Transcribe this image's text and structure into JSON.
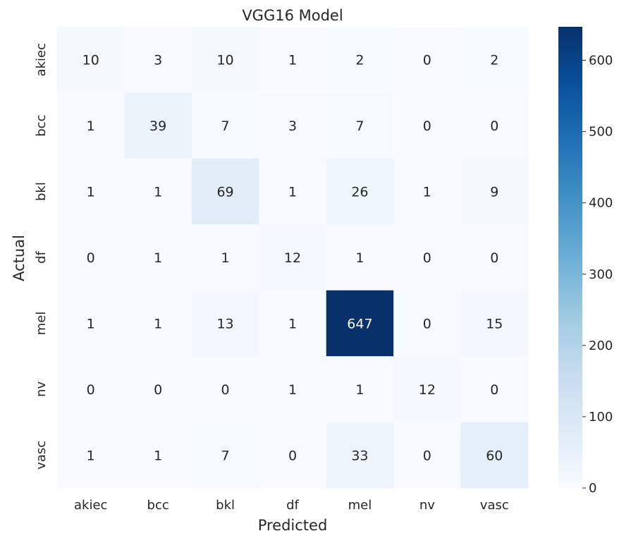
{
  "chart_data": {
    "type": "heatmap",
    "title": "VGG16 Model",
    "xlabel": "Predicted",
    "ylabel": "Actual",
    "x_categories": [
      "akiec",
      "bcc",
      "bkl",
      "df",
      "mel",
      "nv",
      "vasc"
    ],
    "y_categories": [
      "akiec",
      "bcc",
      "bkl",
      "df",
      "mel",
      "nv",
      "vasc"
    ],
    "values": [
      [
        10,
        3,
        10,
        1,
        2,
        0,
        2
      ],
      [
        1,
        39,
        7,
        3,
        7,
        0,
        0
      ],
      [
        1,
        1,
        69,
        1,
        26,
        1,
        9
      ],
      [
        0,
        1,
        1,
        12,
        1,
        0,
        0
      ],
      [
        1,
        1,
        13,
        1,
        647,
        0,
        15
      ],
      [
        0,
        0,
        0,
        1,
        1,
        12,
        0
      ],
      [
        1,
        1,
        7,
        0,
        33,
        0,
        60
      ]
    ],
    "colorbar": {
      "colormap": "Blues",
      "range": [
        0,
        647
      ],
      "ticks": [
        0,
        100,
        200,
        300,
        400,
        500,
        600
      ]
    },
    "grid": false
  }
}
